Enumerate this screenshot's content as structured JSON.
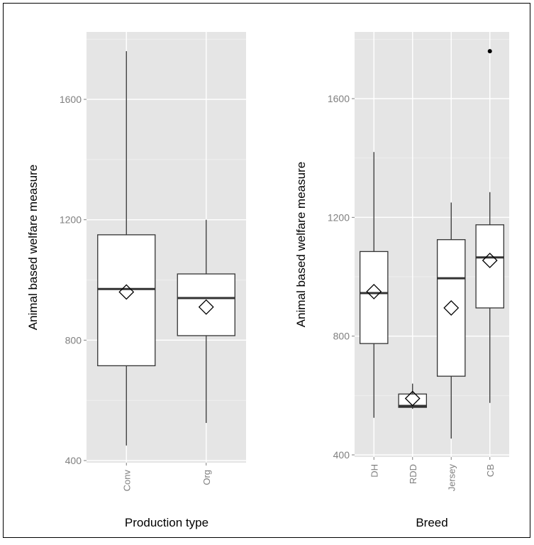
{
  "chart_data": [
    {
      "type": "boxplot",
      "xlabel": "Production type",
      "ylabel": "Animal based welfare measure",
      "categories": [
        "Conv",
        "Org"
      ],
      "yticks": [
        400,
        800,
        1200,
        1600
      ],
      "ylim": [
        380,
        1840
      ],
      "grid": true,
      "boxes": [
        {
          "category": "Conv",
          "min": 450,
          "q1": 715,
          "median": 970,
          "q3": 1150,
          "max": 1760,
          "mean": 960,
          "outliers": []
        },
        {
          "category": "Org",
          "min": 525,
          "q1": 815,
          "median": 940,
          "q3": 1020,
          "max": 1200,
          "mean": 910,
          "outliers": []
        }
      ]
    },
    {
      "type": "boxplot",
      "xlabel": "Breed",
      "ylabel": "Animal based welfare measure",
      "categories": [
        "DH",
        "RDD",
        "Jersey",
        "CB"
      ],
      "yticks": [
        400,
        800,
        1200,
        1600
      ],
      "ylim": [
        380,
        1840
      ],
      "grid": true,
      "boxes": [
        {
          "category": "DH",
          "min": 525,
          "q1": 775,
          "median": 945,
          "q3": 1085,
          "max": 1420,
          "mean": 950,
          "outliers": []
        },
        {
          "category": "RDD",
          "min": 555,
          "q1": 560,
          "median": 565,
          "q3": 605,
          "max": 640,
          "mean": 590,
          "outliers": []
        },
        {
          "category": "Jersey",
          "min": 455,
          "q1": 665,
          "median": 995,
          "q3": 1125,
          "max": 1250,
          "mean": 895,
          "outliers": []
        },
        {
          "category": "CB",
          "min": 575,
          "q1": 895,
          "median": 1065,
          "q3": 1175,
          "max": 1285,
          "mean": 1055,
          "outliers": [
            1760
          ]
        }
      ]
    }
  ]
}
